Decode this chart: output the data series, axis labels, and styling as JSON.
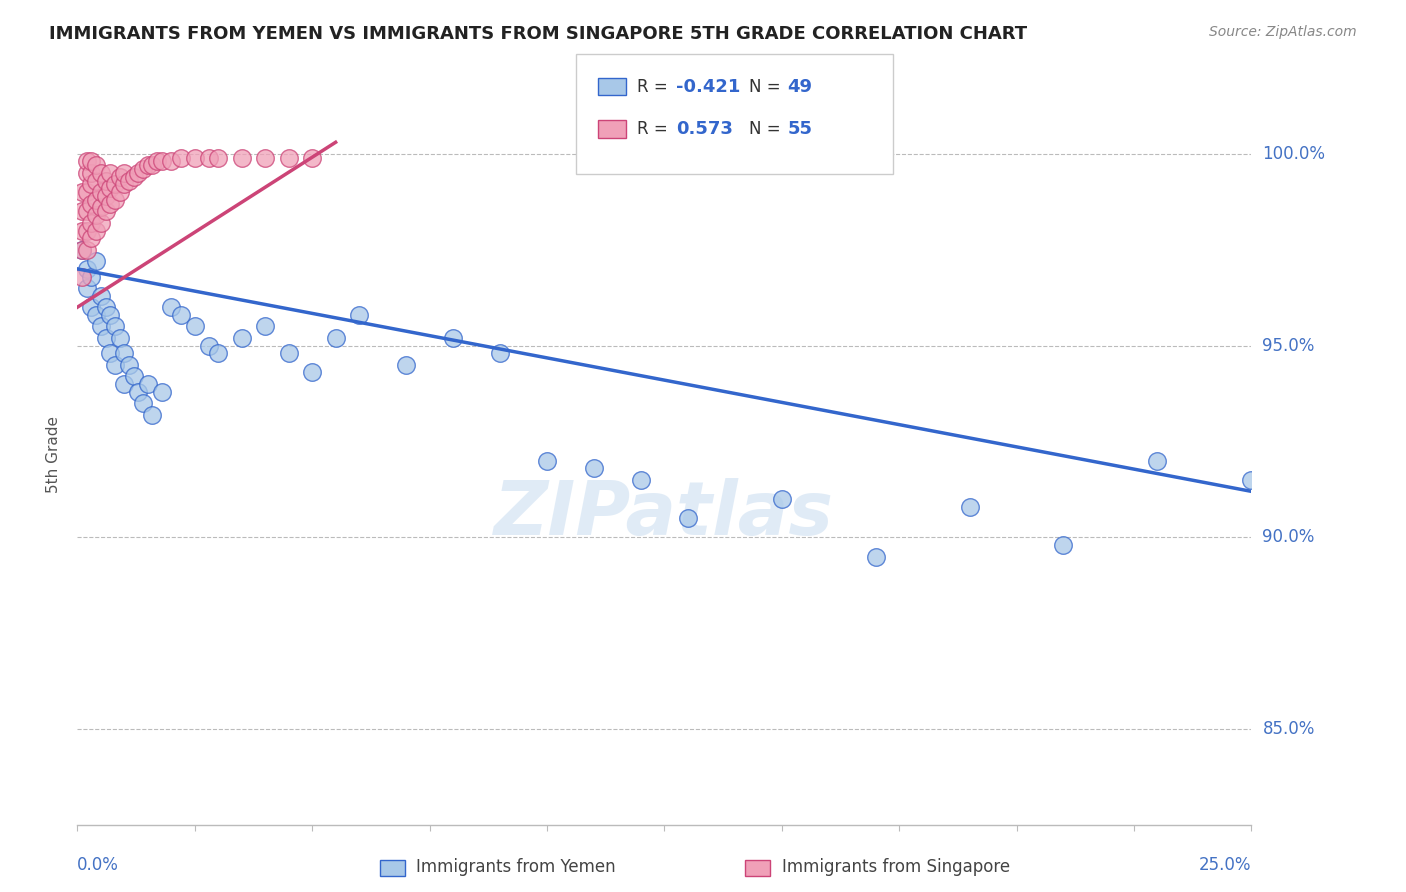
{
  "title": "IMMIGRANTS FROM YEMEN VS IMMIGRANTS FROM SINGAPORE 5TH GRADE CORRELATION CHART",
  "source": "Source: ZipAtlas.com",
  "ylabel": "5th Grade",
  "ytick_labels": [
    "85.0%",
    "90.0%",
    "95.0%",
    "100.0%"
  ],
  "ytick_values": [
    0.85,
    0.9,
    0.95,
    1.0
  ],
  "xlim": [
    0.0,
    0.25
  ],
  "ylim": [
    0.825,
    1.018
  ],
  "legend_r_blue": "-0.421",
  "legend_n_blue": "49",
  "legend_r_pink": "0.573",
  "legend_n_pink": "55",
  "color_blue_fill": "#A8C8E8",
  "color_pink_fill": "#F0A0B8",
  "color_blue_line": "#3366CC",
  "color_pink_line": "#CC4477",
  "color_label_blue": "#4472C4",
  "watermark": "ZIPatlas",
  "blue_scatter_x": [
    0.001,
    0.002,
    0.002,
    0.003,
    0.003,
    0.004,
    0.004,
    0.005,
    0.005,
    0.006,
    0.006,
    0.007,
    0.007,
    0.008,
    0.008,
    0.009,
    0.01,
    0.01,
    0.011,
    0.012,
    0.013,
    0.014,
    0.015,
    0.016,
    0.018,
    0.02,
    0.022,
    0.025,
    0.028,
    0.03,
    0.035,
    0.04,
    0.045,
    0.05,
    0.055,
    0.06,
    0.07,
    0.08,
    0.09,
    0.1,
    0.11,
    0.12,
    0.13,
    0.15,
    0.17,
    0.19,
    0.21,
    0.23,
    0.25
  ],
  "blue_scatter_y": [
    0.975,
    0.97,
    0.965,
    0.968,
    0.96,
    0.972,
    0.958,
    0.963,
    0.955,
    0.96,
    0.952,
    0.958,
    0.948,
    0.955,
    0.945,
    0.952,
    0.948,
    0.94,
    0.945,
    0.942,
    0.938,
    0.935,
    0.94,
    0.932,
    0.938,
    0.96,
    0.958,
    0.955,
    0.95,
    0.948,
    0.952,
    0.955,
    0.948,
    0.943,
    0.952,
    0.958,
    0.945,
    0.952,
    0.948,
    0.92,
    0.918,
    0.915,
    0.905,
    0.91,
    0.895,
    0.908,
    0.898,
    0.92,
    0.915
  ],
  "pink_scatter_x": [
    0.001,
    0.001,
    0.001,
    0.001,
    0.001,
    0.002,
    0.002,
    0.002,
    0.002,
    0.002,
    0.002,
    0.003,
    0.003,
    0.003,
    0.003,
    0.003,
    0.003,
    0.004,
    0.004,
    0.004,
    0.004,
    0.004,
    0.005,
    0.005,
    0.005,
    0.005,
    0.006,
    0.006,
    0.006,
    0.007,
    0.007,
    0.007,
    0.008,
    0.008,
    0.009,
    0.009,
    0.01,
    0.01,
    0.011,
    0.012,
    0.013,
    0.014,
    0.015,
    0.016,
    0.017,
    0.018,
    0.02,
    0.022,
    0.025,
    0.028,
    0.03,
    0.035,
    0.04,
    0.045,
    0.05
  ],
  "pink_scatter_y": [
    0.968,
    0.975,
    0.98,
    0.985,
    0.99,
    0.975,
    0.98,
    0.985,
    0.99,
    0.995,
    0.998,
    0.978,
    0.982,
    0.987,
    0.992,
    0.995,
    0.998,
    0.98,
    0.984,
    0.988,
    0.993,
    0.997,
    0.982,
    0.986,
    0.99,
    0.995,
    0.985,
    0.989,
    0.993,
    0.987,
    0.991,
    0.995,
    0.988,
    0.992,
    0.99,
    0.994,
    0.992,
    0.995,
    0.993,
    0.994,
    0.995,
    0.996,
    0.997,
    0.997,
    0.998,
    0.998,
    0.998,
    0.999,
    0.999,
    0.999,
    0.999,
    0.999,
    0.999,
    0.999,
    0.999
  ],
  "blue_trend_x": [
    0.0,
    0.25
  ],
  "blue_trend_y": [
    0.97,
    0.912
  ],
  "pink_trend_x": [
    0.0,
    0.055
  ],
  "pink_trend_y": [
    0.96,
    1.003
  ]
}
